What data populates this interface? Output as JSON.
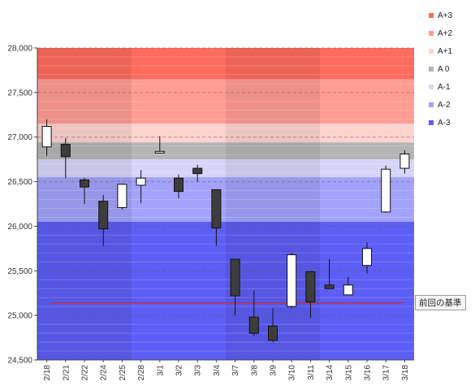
{
  "chart_data": {
    "type": "candlestick",
    "ylim": [
      24500,
      28000
    ],
    "ytick_values": [
      24500,
      25000,
      25500,
      26000,
      26500,
      27000,
      27500,
      28000
    ],
    "ytick_labels": [
      "24,500",
      "25,000",
      "25,500",
      "26,000",
      "26,500",
      "27,000",
      "27,500",
      "28,000"
    ],
    "categories": [
      "2/18",
      "2/21",
      "2/22",
      "2/24",
      "2/25",
      "2/28",
      "3/1",
      "3/2",
      "3/3",
      "3/4",
      "3/7",
      "3/8",
      "3/9",
      "3/10",
      "3/11",
      "3/14",
      "3/15",
      "3/16",
      "3/17",
      "3/18"
    ],
    "week_shading_starts": [
      0,
      5,
      10,
      15
    ],
    "week_shading_ends": [
      4,
      9,
      14,
      19
    ],
    "candles": [
      {
        "open": 26890,
        "high": 27200,
        "low": 26790,
        "close": 27120
      },
      {
        "open": 26920,
        "high": 26990,
        "low": 26540,
        "close": 26780
      },
      {
        "open": 26520,
        "high": 26540,
        "low": 26250,
        "close": 26440
      },
      {
        "open": 26280,
        "high": 26350,
        "low": 25780,
        "close": 25970
      },
      {
        "open": 26210,
        "high": 26480,
        "low": 26190,
        "close": 26470
      },
      {
        "open": 26460,
        "high": 26630,
        "low": 26260,
        "close": 26540
      },
      {
        "open": 26830,
        "high": 27010,
        "low": 26830,
        "close": 26840
      },
      {
        "open": 26540,
        "high": 26580,
        "low": 26310,
        "close": 26390
      },
      {
        "open": 26650,
        "high": 26690,
        "low": 26500,
        "close": 26590
      },
      {
        "open": 26410,
        "high": 26410,
        "low": 25780,
        "close": 25980
      },
      {
        "open": 25630,
        "high": 25630,
        "low": 25000,
        "close": 25220
      },
      {
        "open": 24980,
        "high": 25280,
        "low": 24770,
        "close": 24800
      },
      {
        "open": 24880,
        "high": 25080,
        "low": 24700,
        "close": 24720
      },
      {
        "open": 25100,
        "high": 25700,
        "low": 25080,
        "close": 25680
      },
      {
        "open": 25490,
        "high": 25490,
        "low": 24970,
        "close": 25150
      },
      {
        "open": 25340,
        "high": 25630,
        "low": 25300,
        "close": 25300
      },
      {
        "open": 25230,
        "high": 25430,
        "low": 25230,
        "close": 25340
      },
      {
        "open": 25560,
        "high": 25820,
        "low": 25470,
        "close": 25750
      },
      {
        "open": 26160,
        "high": 26680,
        "low": 26150,
        "close": 26640
      },
      {
        "open": 26650,
        "high": 26850,
        "low": 26590,
        "close": 26810
      }
    ],
    "bands": [
      {
        "name": "A+3",
        "from": 27650,
        "to": 28000,
        "color": "#ff6b5e"
      },
      {
        "name": "A+2",
        "from": 27150,
        "to": 27650,
        "color": "#ff9d93"
      },
      {
        "name": "A+1",
        "from": 26940,
        "to": 27150,
        "color": "#ffd3cf"
      },
      {
        "name": "A 0",
        "from": 26750,
        "to": 26940,
        "color": "#b5b5b5"
      },
      {
        "name": "A-1",
        "from": 26550,
        "to": 26750,
        "color": "#d5d5fb"
      },
      {
        "name": "A-2",
        "from": 26050,
        "to": 26550,
        "color": "#a3a3fb"
      },
      {
        "name": "A-3",
        "from": 24500,
        "to": 26050,
        "color": "#5c5ef5"
      }
    ],
    "reference_line": {
      "value": 25140,
      "label": "前回の基準",
      "color": "#cc2b2b"
    },
    "up_color": "#ffffff",
    "down_color": "#3d3d3d"
  }
}
